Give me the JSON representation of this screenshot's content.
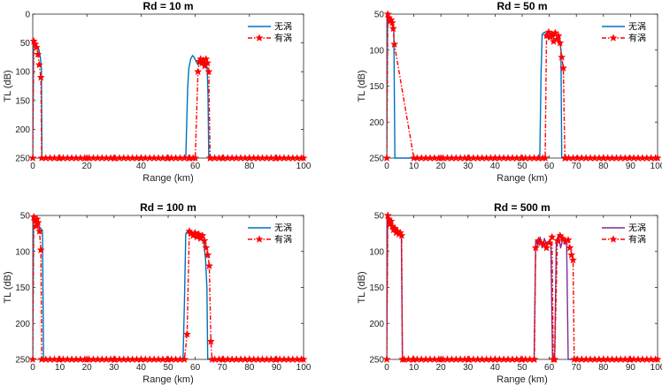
{
  "chart_data": [
    {
      "type": "line",
      "title": "Rd = 10 m",
      "xlabel": "Range (km)",
      "ylabel": "TL (dB)",
      "xlim": [
        0,
        100
      ],
      "ylim": [
        0,
        250
      ],
      "y_reversed": true,
      "xticks": [
        0,
        20,
        40,
        60,
        80,
        100
      ],
      "yticks": [
        0,
        50,
        100,
        150,
        200,
        250
      ],
      "legend": [
        "无涡",
        "有涡"
      ],
      "series": [
        {
          "name": "无涡",
          "style": "solid",
          "color": "#0072BD",
          "marker": "none",
          "x": [
            0,
            0.3,
            0.8,
            1.5,
            2.2,
            2.8,
            3.2,
            3.4,
            3.6,
            10,
            30,
            56.5,
            57.2,
            57.6,
            58.3,
            59.0,
            59.6,
            60.3,
            61.0,
            61.8,
            62.6,
            63.4,
            64.0,
            64.4,
            64.7,
            65.0,
            80,
            100
          ],
          "y": [
            250,
            50,
            52,
            55,
            60,
            75,
            95,
            250,
            250,
            250,
            250,
            250,
            130,
            95,
            78,
            72,
            75,
            82,
            88,
            85,
            80,
            78,
            85,
            95,
            140,
            250,
            250,
            250
          ]
        },
        {
          "name": "有涡",
          "style": "dashdot",
          "color": "#FF0000",
          "marker": "star",
          "x": [
            0,
            0.4,
            0.9,
            1.4,
            1.9,
            2.4,
            3.0,
            3.3,
            10,
            20,
            30,
            40,
            50,
            58,
            60,
            61.0,
            61.5,
            62.0,
            62.5,
            63.0,
            63.5,
            64.0,
            64.5,
            65.0,
            65.5,
            70,
            80,
            90,
            100
          ],
          "y": [
            250,
            47,
            52,
            58,
            70,
            88,
            110,
            250,
            250,
            250,
            250,
            250,
            250,
            250,
            250,
            100,
            82,
            78,
            85,
            80,
            90,
            78,
            85,
            100,
            250,
            250,
            250,
            250,
            250
          ]
        }
      ]
    },
    {
      "type": "line",
      "title": "Rd = 50 m",
      "xlabel": "Range (km)",
      "ylabel": "TL (dB)",
      "xlim": [
        0,
        100
      ],
      "ylim": [
        50,
        250
      ],
      "y_reversed": true,
      "xticks": [
        0,
        10,
        20,
        30,
        40,
        50,
        60,
        70,
        80,
        90,
        100
      ],
      "yticks": [
        50,
        100,
        150,
        200,
        250
      ],
      "legend": [
        "无涡",
        "有涡"
      ],
      "series": [
        {
          "name": "无涡",
          "style": "solid",
          "color": "#0072BD",
          "marker": "none",
          "x": [
            0,
            0.3,
            0.8,
            1.4,
            2.0,
            2.6,
            3.0,
            3.3,
            10,
            30,
            50,
            56.5,
            57.0,
            57.4,
            58.2,
            59.0,
            59.8,
            60.6,
            61.4,
            62.2,
            63.0,
            63.8,
            64.3,
            64.6,
            80,
            100
          ],
          "y": [
            250,
            52,
            55,
            60,
            65,
            75,
            250,
            250,
            250,
            250,
            250,
            250,
            130,
            78,
            75,
            78,
            85,
            80,
            82,
            78,
            82,
            80,
            100,
            250,
            250,
            250
          ]
        },
        {
          "name": "有涡",
          "style": "dashdot",
          "color": "#FF0000",
          "marker": "star",
          "x": [
            0,
            0.4,
            0.8,
            1.2,
            1.6,
            2.0,
            2.4,
            2.8,
            10,
            20,
            30,
            40,
            50,
            56,
            58.5,
            59.0,
            59.8,
            60.4,
            61.0,
            61.6,
            62.2,
            62.8,
            63.4,
            64.0,
            64.6,
            65.2,
            65.8,
            66,
            80,
            100
          ],
          "y": [
            250,
            50,
            55,
            60,
            58,
            62,
            70,
            92,
            250,
            250,
            250,
            250,
            250,
            250,
            250,
            80,
            75,
            82,
            78,
            88,
            76,
            85,
            80,
            90,
            110,
            125,
            250,
            250,
            250,
            250
          ]
        }
      ]
    },
    {
      "type": "line",
      "title": "Rd = 100 m",
      "xlabel": "Range (km)",
      "ylabel": "TL (dB)",
      "xlim": [
        0,
        100
      ],
      "ylim": [
        50,
        250
      ],
      "y_reversed": true,
      "xticks": [
        0,
        10,
        20,
        30,
        40,
        50,
        60,
        70,
        80,
        90,
        100
      ],
      "yticks": [
        50,
        100,
        150,
        200,
        250
      ],
      "legend": [
        "无涡",
        "有涡"
      ],
      "series": [
        {
          "name": "无涡",
          "style": "solid",
          "color": "#0072BD",
          "marker": "none",
          "x": [
            0,
            0.3,
            0.8,
            1.5,
            2.3,
            3.0,
            3.6,
            4.0,
            10,
            30,
            50,
            55.5,
            56.0,
            56.5,
            57.3,
            58.2,
            59.2,
            60.2,
            61.2,
            62.2,
            63.2,
            63.8,
            64.3,
            64.6,
            80,
            100
          ],
          "y": [
            250,
            52,
            58,
            62,
            65,
            68,
            72,
            250,
            250,
            250,
            250,
            250,
            170,
            75,
            72,
            74,
            78,
            80,
            78,
            82,
            88,
            110,
            150,
            250,
            250,
            250
          ]
        },
        {
          "name": "有涡",
          "style": "dashdot",
          "color": "#FF0000",
          "marker": "star",
          "x": [
            0,
            0.4,
            0.8,
            1.2,
            1.6,
            2.0,
            2.5,
            3.0,
            3.3,
            10,
            20,
            30,
            40,
            50,
            56,
            57.0,
            57.8,
            58.5,
            59.2,
            59.9,
            60.6,
            61.3,
            62.0,
            62.7,
            63.4,
            64.0,
            64.6,
            65.2,
            65.8,
            66.2,
            70,
            80,
            90,
            100
          ],
          "y": [
            250,
            52,
            58,
            65,
            55,
            60,
            72,
            98,
            250,
            250,
            250,
            250,
            250,
            250,
            250,
            215,
            72,
            75,
            78,
            74,
            80,
            76,
            82,
            78,
            85,
            95,
            105,
            120,
            225,
            250,
            250,
            250,
            250,
            250
          ]
        }
      ]
    },
    {
      "type": "line",
      "title": "Rd = 500 m",
      "xlabel": "Range (km)",
      "ylabel": "TL (dB)",
      "xlim": [
        0,
        100
      ],
      "ylim": [
        50,
        250
      ],
      "y_reversed": true,
      "xticks": [
        0,
        10,
        20,
        30,
        40,
        50,
        60,
        70,
        80,
        90,
        100
      ],
      "yticks": [
        50,
        100,
        150,
        200,
        250
      ],
      "legend": [
        "无涡",
        "有涡"
      ],
      "series": [
        {
          "name": "无涡",
          "style": "solid",
          "color": "#7E2F8E",
          "marker": "none",
          "x": [
            0,
            0.3,
            0.8,
            1.5,
            2.3,
            3.1,
            4.0,
            4.8,
            5.4,
            5.8,
            10,
            30,
            50,
            54.4,
            55.0,
            55.8,
            56.6,
            57.4,
            58.2,
            59.0,
            59.8,
            60.6,
            61.2,
            61.6,
            62.0,
            62.6,
            63.4,
            64.2,
            65.0,
            65.8,
            66.4,
            67.0,
            80,
            100
          ],
          "y": [
            250,
            50,
            60,
            58,
            70,
            65,
            72,
            75,
            78,
            250,
            250,
            250,
            250,
            250,
            85,
            92,
            80,
            95,
            82,
            90,
            86,
            88,
            250,
            250,
            250,
            85,
            78,
            95,
            82,
            90,
            85,
            250,
            250,
            250
          ]
        },
        {
          "name": "有涡",
          "style": "dashdot",
          "color": "#FF0000",
          "marker": "star",
          "x": [
            0,
            0.4,
            0.8,
            1.2,
            1.6,
            2.0,
            2.5,
            3.0,
            3.5,
            4.0,
            4.5,
            5.0,
            5.5,
            5.8,
            10,
            20,
            30,
            40,
            50,
            54.5,
            55.0,
            56.0,
            57.0,
            58.0,
            59.0,
            60.0,
            61.0,
            61.5,
            62.0,
            63.0,
            64.0,
            65.0,
            66.0,
            67.0,
            67.6,
            68.2,
            68.8,
            69.2,
            80,
            90,
            100
          ],
          "y": [
            250,
            50,
            55,
            62,
            58,
            65,
            70,
            68,
            74,
            72,
            76,
            74,
            78,
            250,
            250,
            250,
            250,
            250,
            250,
            250,
            95,
            85,
            88,
            90,
            95,
            88,
            80,
            250,
            250,
            85,
            78,
            82,
            86,
            84,
            95,
            105,
            112,
            250,
            250,
            250,
            250
          ]
        }
      ]
    }
  ]
}
